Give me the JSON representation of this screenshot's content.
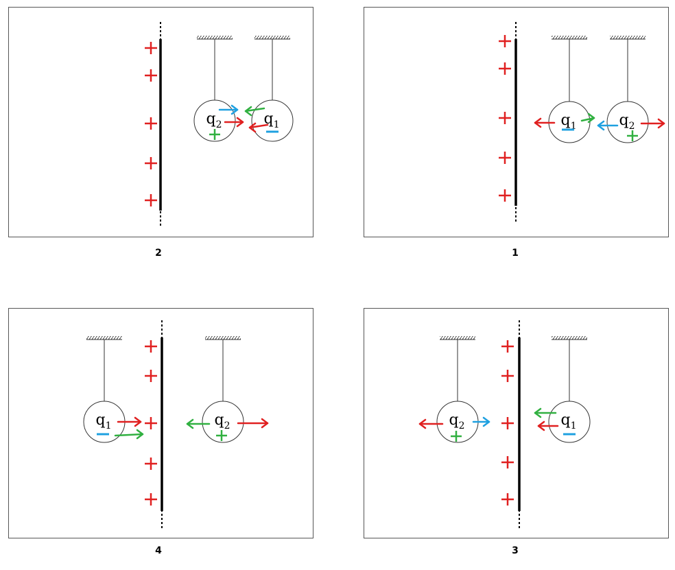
{
  "panels": [
    {
      "label": "2",
      "spheres": [
        {
          "symbol": "q",
          "subscript": "2"
        },
        {
          "symbol": "q",
          "subscript": "1"
        }
      ]
    },
    {
      "label": "1",
      "spheres": [
        {
          "symbol": "q",
          "subscript": "1"
        },
        {
          "symbol": "q",
          "subscript": "2"
        }
      ]
    },
    {
      "label": "4",
      "spheres": [
        {
          "symbol": "q",
          "subscript": "1"
        },
        {
          "symbol": "q",
          "subscript": "2"
        }
      ]
    },
    {
      "label": "3",
      "spheres": [
        {
          "symbol": "q",
          "subscript": "2"
        },
        {
          "symbol": "q",
          "subscript": "1"
        }
      ]
    }
  ]
}
